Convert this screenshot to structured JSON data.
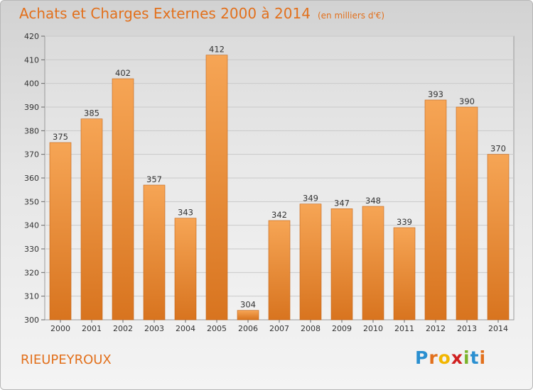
{
  "header": {
    "title": "Achats et Charges Externes 2000 à 2014",
    "subtitle": "(en milliers d'€)"
  },
  "footer": {
    "commune": "RIEUPEYROUX",
    "logo_letters": [
      "P",
      "r",
      "o",
      "x",
      "i",
      "t",
      "i"
    ],
    "logo_colors": [
      "#2a8fd0",
      "#e2701c",
      "#f2b600",
      "#d02020",
      "#7ab32a",
      "#2a8fd0",
      "#e2701c"
    ]
  },
  "colors": {
    "accent": "#e2701c",
    "bar_light": "#f6a555",
    "bar_dark": "#d8741f"
  },
  "chart_data": {
    "type": "bar",
    "categories": [
      "2000",
      "2001",
      "2002",
      "2003",
      "2004",
      "2005",
      "2006",
      "2007",
      "2008",
      "2009",
      "2010",
      "2011",
      "2012",
      "2013",
      "2014"
    ],
    "values": [
      375,
      385,
      402,
      357,
      343,
      412,
      304,
      342,
      349,
      347,
      348,
      339,
      393,
      390,
      370
    ],
    "ylim": [
      300,
      420
    ],
    "yticks": [
      300,
      310,
      320,
      330,
      340,
      350,
      360,
      370,
      380,
      390,
      400,
      410,
      420
    ],
    "grid": true,
    "data_labels": true
  }
}
